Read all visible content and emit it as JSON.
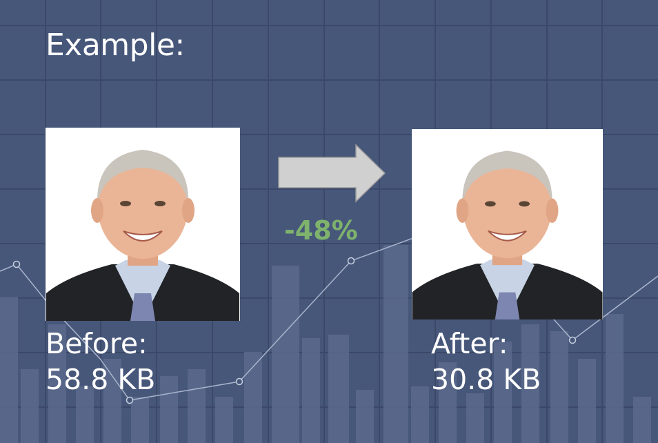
{
  "title": "Example:",
  "before": {
    "label": "Before:",
    "size": "58.8 KB"
  },
  "after": {
    "label": "After:",
    "size": "30.8 KB"
  },
  "reduction": "-48%",
  "colors": {
    "background": "#47577a",
    "accent_green": "#7eb26d",
    "arrow": "#d0d0d0"
  }
}
